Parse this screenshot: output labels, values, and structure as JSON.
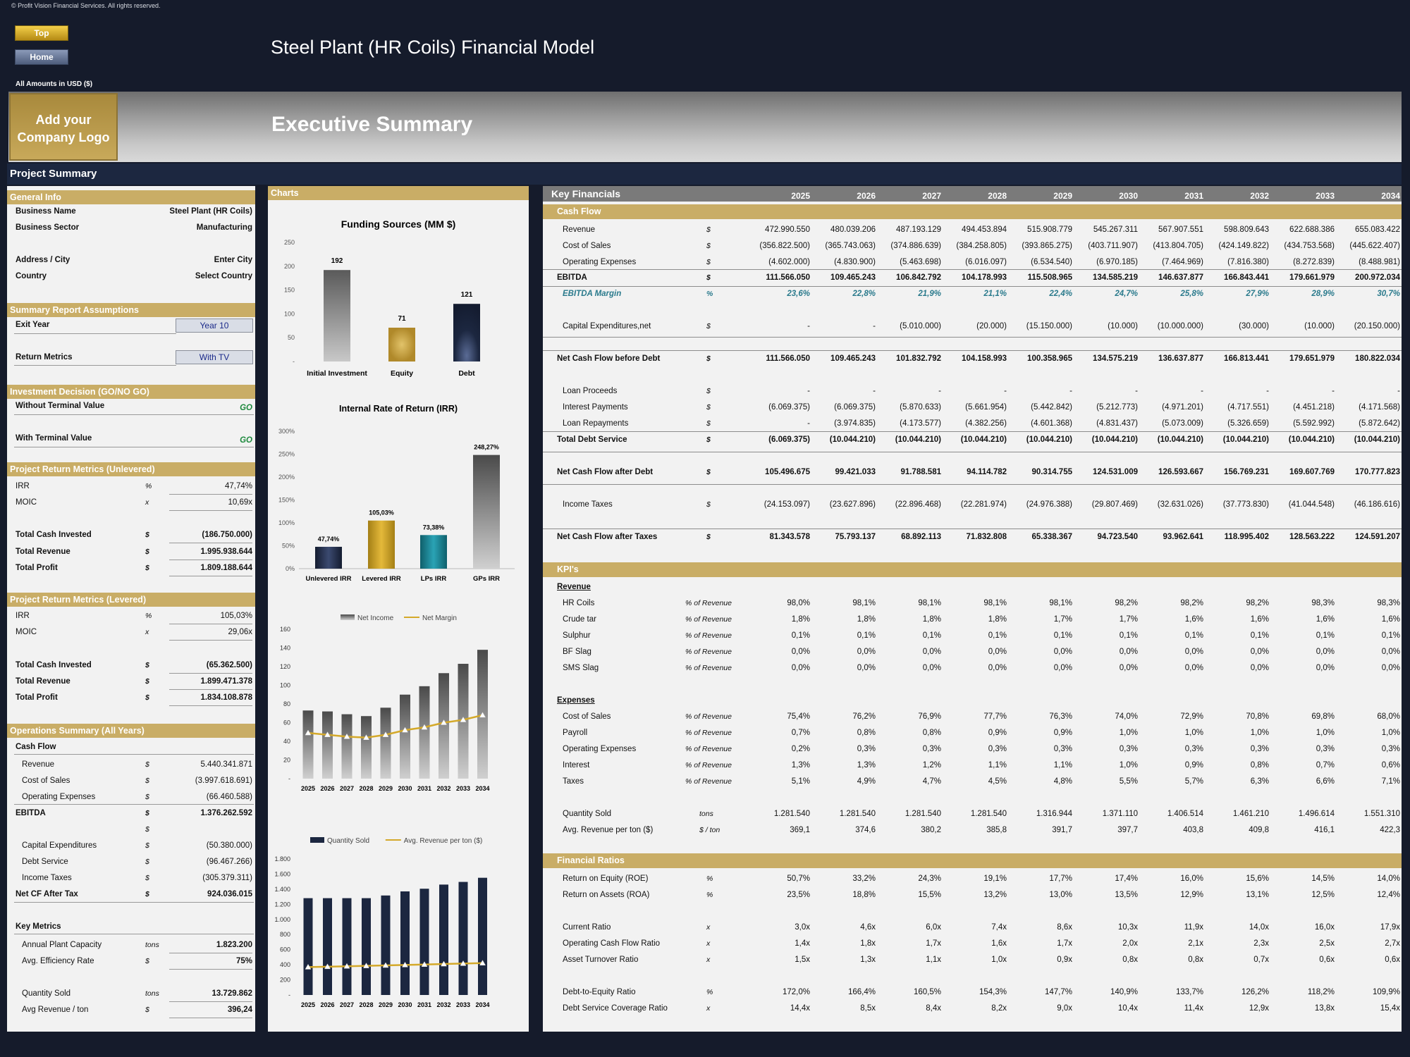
{
  "copyright": "© Profit Vision Financial Services. All rights reserved.",
  "buttons": {
    "top": "Top",
    "home": "Home"
  },
  "model_title": "Steel Plant (HR Coils) Financial Model",
  "amounts_label": "All Amounts in   USD ($)",
  "logo_text": [
    "Add your",
    "Company Logo"
  ],
  "page_title": "Executive Summary",
  "project_summary": "Project Summary",
  "colors": {
    "gold": "#c9ad66",
    "navy": "#151b2b",
    "band": "#1c2740",
    "go": "#1e8a3e",
    "teal": "#2a7a8c"
  },
  "general_info": {
    "header": "General Info",
    "rows": [
      {
        "label": "Business Name",
        "value": "Steel Plant (HR Coils)"
      },
      {
        "label": "Business Sector",
        "value": "Manufacturing"
      },
      {
        "label": "Address / City",
        "value": "Enter City"
      },
      {
        "label": "Country",
        "value": "Select Country"
      }
    ]
  },
  "assumptions": {
    "header": "Summary  Report Assumptions",
    "exit_year_label": "Exit Year",
    "exit_year_value": "Year 10",
    "return_metrics_label": "Return Metrics",
    "return_metrics_value": "With TV"
  },
  "investment_decision": {
    "header": "Investment Decision (GO/NO GO)",
    "without_tv_label": "Without Terminal Value",
    "without_tv_value": "GO",
    "with_tv_label": "With Terminal Value",
    "with_tv_value": "GO"
  },
  "unlevered": {
    "header": "Project Return Metrics (Unlevered)",
    "rows": [
      {
        "label": "IRR",
        "unit": "%",
        "value": "47,74%",
        "bold": false
      },
      {
        "label": "MOIC",
        "unit": "x",
        "value": "10,69x",
        "bold": false
      },
      {
        "label": "Total Cash Invested",
        "unit": "$",
        "value": "(186.750.000)",
        "bold": true
      },
      {
        "label": "Total Revenue",
        "unit": "$",
        "value": "1.995.938.644",
        "bold": true
      },
      {
        "label": "Total Profit",
        "unit": "$",
        "value": "1.809.188.644",
        "bold": true
      }
    ]
  },
  "levered": {
    "header": "Project Return Metrics (Levered)",
    "rows": [
      {
        "label": "IRR",
        "unit": "%",
        "value": "105,03%",
        "bold": false
      },
      {
        "label": "MOIC",
        "unit": "x",
        "value": "29,06x",
        "bold": false
      },
      {
        "label": "Total Cash Invested",
        "unit": "$",
        "value": "(65.362.500)",
        "bold": true
      },
      {
        "label": "Total Revenue",
        "unit": "$",
        "value": "1.899.471.378",
        "bold": true
      },
      {
        "label": "Total Profit",
        "unit": "$",
        "value": "1.834.108.878",
        "bold": true
      }
    ]
  },
  "operations": {
    "header": "Operations Summary (All Years)",
    "cash_flow_label": "Cash Flow",
    "rows": [
      {
        "label": "Revenue",
        "unit": "$",
        "value": "5.440.341.871",
        "bold": false
      },
      {
        "label": "Cost of Sales",
        "unit": "$",
        "value": "(3.997.618.691)",
        "bold": false
      },
      {
        "label": "Operating Expenses",
        "unit": "$",
        "value": "(66.460.588)",
        "bold": false
      },
      {
        "label": "EBITDA",
        "unit": "$",
        "value": "1.376.262.592",
        "bold": true
      },
      {
        "label": "",
        "unit": "$",
        "value": "",
        "bold": false
      },
      {
        "label": "Capital Expenditures",
        "unit": "$",
        "value": "(50.380.000)",
        "bold": false
      },
      {
        "label": "Debt Service",
        "unit": "$",
        "value": "(96.467.266)",
        "bold": false
      },
      {
        "label": "Income Taxes",
        "unit": "$",
        "value": "(305.379.311)",
        "bold": false
      },
      {
        "label": "Net CF After Tax",
        "unit": "$",
        "value": "924.036.015",
        "bold": true
      }
    ],
    "key_metrics_label": "Key Metrics",
    "key_metrics": [
      {
        "label": "Annual Plant Capacity",
        "unit": "tons",
        "value": "1.823.200",
        "bold": true
      },
      {
        "label": "Avg. Efficiency Rate",
        "unit": "$",
        "value": "75%",
        "bold": true
      },
      {
        "label": "Quantity Sold",
        "unit": "tons",
        "value": "13.729.862",
        "bold": true
      },
      {
        "label": "Avg Revenue / ton",
        "unit": "$",
        "value": "396,24",
        "bold": true
      }
    ]
  },
  "charts_header": "Charts",
  "chart_data": [
    {
      "type": "bar",
      "title": "Funding Sources (MM $)",
      "categories": [
        "Initial Investment",
        "Equity",
        "Debt"
      ],
      "values": [
        192,
        71,
        121
      ],
      "ylim": [
        0,
        250
      ],
      "yticks": [
        "250",
        "200",
        "150",
        "100",
        "50",
        "-"
      ],
      "colors": [
        "#7a7a7a",
        "#b8962f",
        "#1c2740"
      ]
    },
    {
      "type": "bar",
      "title": "Internal Rate of Return (IRR)",
      "categories": [
        "Unlevered IRR",
        "Levered IRR",
        "LPs IRR",
        "GPs IRR"
      ],
      "values": [
        47.74,
        105.03,
        73.38,
        248.27
      ],
      "labels": [
        "47,74%",
        "105,03%",
        "73,38%",
        "248,27%"
      ],
      "ylim": [
        0,
        300
      ],
      "yticks": [
        "300%",
        "250%",
        "200%",
        "150%",
        "100%",
        "50%",
        "0%"
      ],
      "colors": [
        "#1c2740",
        "#c39a22",
        "#1d7f8e",
        "#8a8a8a"
      ]
    },
    {
      "type": "bar",
      "title": "",
      "legend": [
        "Net Income",
        "Net Margin"
      ],
      "categories": [
        "2025",
        "2026",
        "2027",
        "2028",
        "2029",
        "2030",
        "2031",
        "2032",
        "2033",
        "2034"
      ],
      "series": [
        {
          "name": "Net Income",
          "values": [
            73,
            72,
            69,
            67,
            76,
            90,
            99,
            113,
            123,
            138
          ]
        },
        {
          "name": "Net Margin",
          "values": [
            49,
            47,
            45,
            44,
            47,
            52,
            55,
            60,
            63,
            68
          ]
        }
      ],
      "ylim": [
        0,
        160
      ],
      "yticks": [
        "160",
        "140",
        "120",
        "100",
        "80",
        "60",
        "40",
        "20",
        "-"
      ]
    },
    {
      "type": "bar",
      "title": "",
      "legend": [
        "Quantity Sold",
        "Avg. Revenue per ton ($)"
      ],
      "categories": [
        "2025",
        "2026",
        "2027",
        "2028",
        "2029",
        "2030",
        "2031",
        "2032",
        "2033",
        "2034"
      ],
      "series": [
        {
          "name": "Quantity Sold",
          "values": [
            1281.54,
            1281.54,
            1281.54,
            1281.54,
            1316.944,
            1371.11,
            1406.514,
            1461.21,
            1496.614,
            1551.31
          ]
        },
        {
          "name": "Avg. Revenue per ton ($)",
          "values": [
            369.1,
            374.6,
            380.2,
            385.8,
            391.7,
            397.7,
            403.8,
            409.8,
            416.1,
            422.3
          ]
        }
      ],
      "ylim": [
        0,
        1800
      ],
      "yticks": [
        "1.800",
        "1.600",
        "1.400",
        "1.200",
        "1.000",
        "800",
        "600",
        "400",
        "200",
        "-"
      ]
    }
  ],
  "key_financials": {
    "header": "Key Financials",
    "years": [
      "2025",
      "2026",
      "2027",
      "2028",
      "2029",
      "2030",
      "2031",
      "2032",
      "2033",
      "2034"
    ],
    "cash_flow_header": "Cash Flow",
    "cash_flow_rows": [
      {
        "label": "Revenue",
        "unit": "$",
        "style": "",
        "values": [
          "472.990.550",
          "480.039.206",
          "487.193.129",
          "494.453.894",
          "515.908.779",
          "545.267.311",
          "567.907.551",
          "598.809.643",
          "622.688.386",
          "655.083.422"
        ]
      },
      {
        "label": "Cost of Sales",
        "unit": "$",
        "style": "",
        "values": [
          "(356.822.500)",
          "(365.743.063)",
          "(374.886.639)",
          "(384.258.805)",
          "(393.865.275)",
          "(403.711.907)",
          "(413.804.705)",
          "(424.149.822)",
          "(434.753.568)",
          "(445.622.407)"
        ]
      },
      {
        "label": "Operating Expenses",
        "unit": "$",
        "style": "",
        "values": [
          "(4.602.000)",
          "(4.830.900)",
          "(5.463.698)",
          "(6.016.097)",
          "(6.534.540)",
          "(6.970.185)",
          "(7.464.969)",
          "(7.816.380)",
          "(8.272.839)",
          "(8.488.981)"
        ]
      },
      {
        "label": "EBITDA",
        "unit": "$",
        "style": "total",
        "values": [
          "111.566.050",
          "109.465.243",
          "106.842.792",
          "104.178.993",
          "115.508.965",
          "134.585.219",
          "146.637.877",
          "166.843.441",
          "179.661.979",
          "200.972.034"
        ]
      },
      {
        "label": "EBITDA Margin",
        "unit": "%",
        "style": "margin",
        "values": [
          "23,6%",
          "22,8%",
          "21,9%",
          "21,1%",
          "22,4%",
          "24,7%",
          "25,8%",
          "27,9%",
          "28,9%",
          "30,7%"
        ]
      },
      {
        "label": "Capital Expenditures,net",
        "unit": "$",
        "style": "",
        "values": [
          "-",
          "-",
          "(5.010.000)",
          "(20.000)",
          "(15.150.000)",
          "(10.000)",
          "(10.000.000)",
          "(30.000)",
          "(10.000)",
          "(20.150.000)"
        ]
      },
      {
        "label": "Net Cash Flow before Debt",
        "unit": "$",
        "style": "total",
        "values": [
          "111.566.050",
          "109.465.243",
          "101.832.792",
          "104.158.993",
          "100.358.965",
          "134.575.219",
          "136.637.877",
          "166.813.441",
          "179.651.979",
          "180.822.034"
        ]
      },
      {
        "label": "Loan Proceeds",
        "unit": "$",
        "style": "",
        "values": [
          "-",
          "-",
          "-",
          "-",
          "-",
          "-",
          "-",
          "-",
          "-",
          "-"
        ]
      },
      {
        "label": "Interest Payments",
        "unit": "$",
        "style": "",
        "values": [
          "(6.069.375)",
          "(6.069.375)",
          "(5.870.633)",
          "(5.661.954)",
          "(5.442.842)",
          "(5.212.773)",
          "(4.971.201)",
          "(4.717.551)",
          "(4.451.218)",
          "(4.171.568)"
        ]
      },
      {
        "label": "Loan Repayments",
        "unit": "$",
        "style": "",
        "values": [
          "-",
          "(3.974.835)",
          "(4.173.577)",
          "(4.382.256)",
          "(4.601.368)",
          "(4.831.437)",
          "(5.073.009)",
          "(5.326.659)",
          "(5.592.992)",
          "(5.872.642)"
        ]
      },
      {
        "label": "Total Debt Service",
        "unit": "$",
        "style": "total",
        "values": [
          "(6.069.375)",
          "(10.044.210)",
          "(10.044.210)",
          "(10.044.210)",
          "(10.044.210)",
          "(10.044.210)",
          "(10.044.210)",
          "(10.044.210)",
          "(10.044.210)",
          "(10.044.210)"
        ]
      },
      {
        "label": "Net Cash Flow after Debt",
        "unit": "$",
        "style": "total",
        "values": [
          "105.496.675",
          "99.421.033",
          "91.788.581",
          "94.114.782",
          "90.314.755",
          "124.531.009",
          "126.593.667",
          "156.769.231",
          "169.607.769",
          "170.777.823"
        ]
      },
      {
        "label": "Income Taxes",
        "unit": "$",
        "style": "",
        "values": [
          "(24.153.097)",
          "(23.627.896)",
          "(22.896.468)",
          "(22.281.974)",
          "(24.976.388)",
          "(29.807.469)",
          "(32.631.026)",
          "(37.773.830)",
          "(41.044.548)",
          "(46.186.616)"
        ]
      },
      {
        "label": "Net Cash Flow after Taxes",
        "unit": "$",
        "style": "total",
        "values": [
          "81.343.578",
          "75.793.137",
          "68.892.113",
          "71.832.808",
          "65.338.367",
          "94.723.540",
          "93.962.641",
          "118.995.402",
          "128.563.222",
          "124.591.207"
        ]
      }
    ],
    "kpis_header": "KPI's",
    "revenue_label": "Revenue",
    "revenue_rows": [
      {
        "label": "HR Coils",
        "unit": "% of Revenue",
        "values": [
          "98,0%",
          "98,1%",
          "98,1%",
          "98,1%",
          "98,1%",
          "98,2%",
          "98,2%",
          "98,2%",
          "98,3%",
          "98,3%"
        ]
      },
      {
        "label": "Crude tar",
        "unit": "% of Revenue",
        "values": [
          "1,8%",
          "1,8%",
          "1,8%",
          "1,8%",
          "1,7%",
          "1,7%",
          "1,6%",
          "1,6%",
          "1,6%",
          "1,6%"
        ]
      },
      {
        "label": "Sulphur",
        "unit": "% of Revenue",
        "values": [
          "0,1%",
          "0,1%",
          "0,1%",
          "0,1%",
          "0,1%",
          "0,1%",
          "0,1%",
          "0,1%",
          "0,1%",
          "0,1%"
        ]
      },
      {
        "label": "BF Slag",
        "unit": "% of Revenue",
        "values": [
          "0,0%",
          "0,0%",
          "0,0%",
          "0,0%",
          "0,0%",
          "0,0%",
          "0,0%",
          "0,0%",
          "0,0%",
          "0,0%"
        ]
      },
      {
        "label": "SMS Slag",
        "unit": "% of Revenue",
        "values": [
          "0,0%",
          "0,0%",
          "0,0%",
          "0,0%",
          "0,0%",
          "0,0%",
          "0,0%",
          "0,0%",
          "0,0%",
          "0,0%"
        ]
      }
    ],
    "expenses_label": "Expenses",
    "expense_rows": [
      {
        "label": "Cost of Sales",
        "unit": "% of Revenue",
        "values": [
          "75,4%",
          "76,2%",
          "76,9%",
          "77,7%",
          "76,3%",
          "74,0%",
          "72,9%",
          "70,8%",
          "69,8%",
          "68,0%"
        ]
      },
      {
        "label": "Payroll",
        "unit": "% of Revenue",
        "values": [
          "0,7%",
          "0,8%",
          "0,8%",
          "0,9%",
          "0,9%",
          "1,0%",
          "1,0%",
          "1,0%",
          "1,0%",
          "1,0%"
        ]
      },
      {
        "label": "Operating Expenses",
        "unit": "% of Revenue",
        "values": [
          "0,2%",
          "0,3%",
          "0,3%",
          "0,3%",
          "0,3%",
          "0,3%",
          "0,3%",
          "0,3%",
          "0,3%",
          "0,3%"
        ]
      },
      {
        "label": "Interest",
        "unit": "% of Revenue",
        "values": [
          "1,3%",
          "1,3%",
          "1,2%",
          "1,1%",
          "1,1%",
          "1,0%",
          "0,9%",
          "0,8%",
          "0,7%",
          "0,6%"
        ]
      },
      {
        "label": "Taxes",
        "unit": "% of Revenue",
        "values": [
          "5,1%",
          "4,9%",
          "4,7%",
          "4,5%",
          "4,8%",
          "5,5%",
          "5,7%",
          "6,3%",
          "6,6%",
          "7,1%"
        ]
      }
    ],
    "volume_rows": [
      {
        "label": "Quantity Sold",
        "unit": "tons",
        "values": [
          "1.281.540",
          "1.281.540",
          "1.281.540",
          "1.281.540",
          "1.316.944",
          "1.371.110",
          "1.406.514",
          "1.461.210",
          "1.496.614",
          "1.551.310"
        ]
      },
      {
        "label": "Avg. Revenue per ton ($)",
        "unit": "$ / ton",
        "values": [
          "369,1",
          "374,6",
          "380,2",
          "385,8",
          "391,7",
          "397,7",
          "403,8",
          "409,8",
          "416,1",
          "422,3"
        ]
      }
    ],
    "ratios_header": "Financial Ratios",
    "ratio_rows": [
      {
        "label": "Return on Equity (ROE)",
        "unit": "%",
        "values": [
          "50,7%",
          "33,2%",
          "24,3%",
          "19,1%",
          "17,7%",
          "17,4%",
          "16,0%",
          "15,6%",
          "14,5%",
          "14,0%"
        ]
      },
      {
        "label": "Return on Assets (ROA)",
        "unit": "%",
        "values": [
          "23,5%",
          "18,8%",
          "15,5%",
          "13,2%",
          "13,0%",
          "13,5%",
          "12,9%",
          "13,1%",
          "12,5%",
          "12,4%"
        ]
      },
      {
        "label": "Current Ratio",
        "unit": "x",
        "values": [
          "3,0x",
          "4,6x",
          "6,0x",
          "7,4x",
          "8,6x",
          "10,3x",
          "11,9x",
          "14,0x",
          "16,0x",
          "17,9x"
        ]
      },
      {
        "label": "Operating Cash Flow Ratio",
        "unit": "x",
        "values": [
          "1,4x",
          "1,8x",
          "1,7x",
          "1,6x",
          "1,7x",
          "2,0x",
          "2,1x",
          "2,3x",
          "2,5x",
          "2,7x"
        ]
      },
      {
        "label": "Asset Turnover Ratio",
        "unit": "x",
        "values": [
          "1,5x",
          "1,3x",
          "1,1x",
          "1,0x",
          "0,9x",
          "0,8x",
          "0,8x",
          "0,7x",
          "0,6x",
          "0,6x"
        ]
      },
      {
        "label": "Debt-to-Equity Ratio",
        "unit": "%",
        "values": [
          "172,0%",
          "166,4%",
          "160,5%",
          "154,3%",
          "147,7%",
          "140,9%",
          "133,7%",
          "126,2%",
          "118,2%",
          "109,9%"
        ]
      },
      {
        "label": "Debt Service Coverage Ratio",
        "unit": "x",
        "values": [
          "14,4x",
          "8,5x",
          "8,4x",
          "8,2x",
          "9,0x",
          "10,4x",
          "11,4x",
          "12,9x",
          "13,8x",
          "15,4x"
        ]
      }
    ]
  }
}
